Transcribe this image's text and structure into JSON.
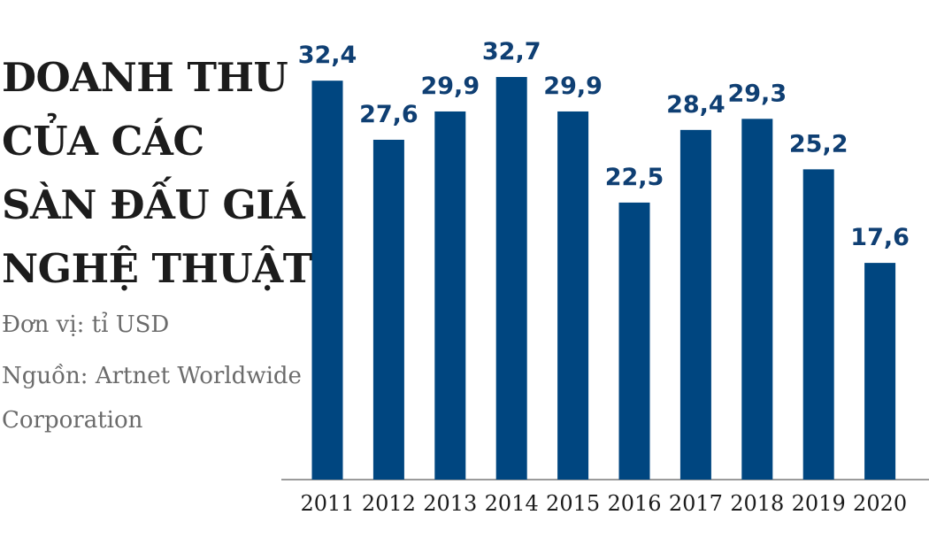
{
  "title_lines": [
    "DOANH THU",
    "CỦA CÁC",
    "SÀN ĐẤU GIÁ",
    "NGHỆ THUẬT"
  ],
  "unit": "Đơn vị: tỉ USD",
  "source": "Nguồn: Artnet Worldwide Corporation",
  "colors": {
    "bar": "#004680",
    "label": "#0f3f73",
    "axis": "#7a7a7a"
  },
  "chart_data": {
    "type": "bar",
    "categories": [
      "2011",
      "2012",
      "2013",
      "2014",
      "2015",
      "2016",
      "2017",
      "2018",
      "2019",
      "2020"
    ],
    "values": [
      32.4,
      27.6,
      29.9,
      32.7,
      29.9,
      22.5,
      28.4,
      29.3,
      25.2,
      17.6
    ],
    "value_labels": [
      "32,4",
      "27,6",
      "29,9",
      "32,7",
      "29,9",
      "22,5",
      "28,4",
      "29,3",
      "25,2",
      "17,6"
    ],
    "title": "DOANH THU CỦA CÁC SÀN ĐẤU GIÁ NGHỆ THUẬT",
    "xlabel": "",
    "ylabel": "",
    "ylim": [
      0,
      35
    ],
    "grid": false,
    "legend": "none"
  }
}
